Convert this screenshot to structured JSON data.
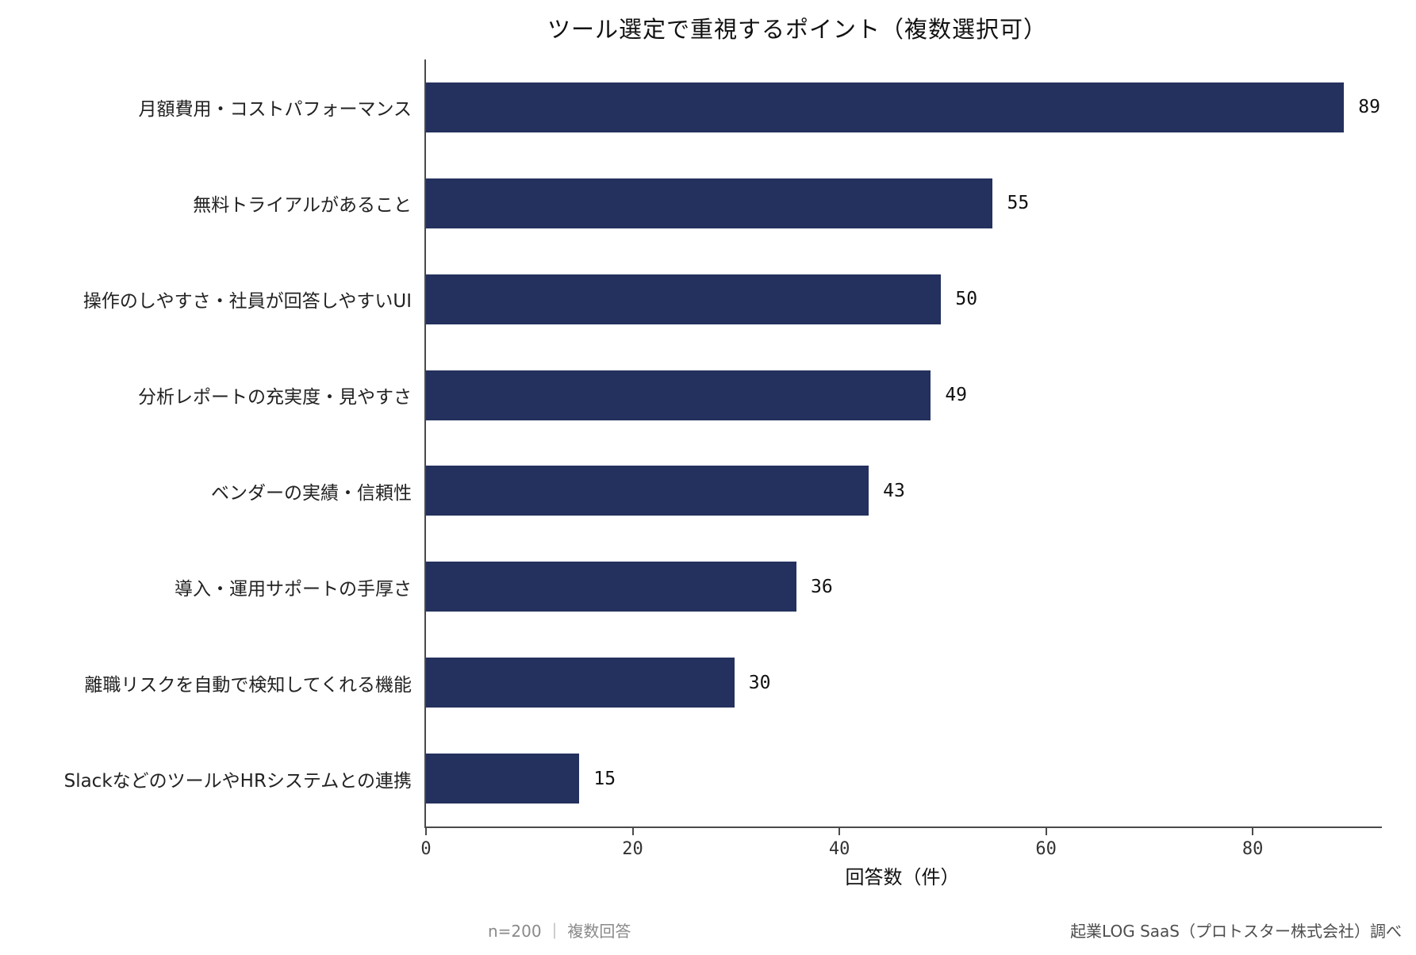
{
  "title": "ツール選定で重視するポイント（複数選択可）",
  "footer": {
    "left": "n=200 ｜ 複数回答",
    "right": "起業LOG SaaS（プロトスター株式会社）調べ"
  },
  "colors": {
    "bar": "#24315E",
    "axis": "#4a4a4a",
    "title_text": "#111111",
    "category_text": "#222222",
    "value_text": "#111111",
    "tick_text": "#333333",
    "footer_left_text": "#8a8a8a",
    "footer_right_text": "#4d4d4d"
  },
  "chart_data": {
    "type": "bar",
    "orientation": "horizontal",
    "title": "ツール選定で重視するポイント（複数選択可）",
    "categories": [
      "月額費用・コストパフォーマンス",
      "無料トライアルがあること",
      "操作のしやすさ・社員が回答しやすいUI",
      "分析レポートの充実度・見やすさ",
      "ベンダーの実績・信頼性",
      "導入・運用サポートの手厚さ",
      "離職リスクを自動で検知してくれる機能",
      "SlackなどのツールやHRシステムとの連携"
    ],
    "values": [
      89,
      55,
      50,
      49,
      43,
      36,
      30,
      15
    ],
    "xlabel": "回答数（件）",
    "ylabel": "",
    "xticks": [
      0,
      20,
      40,
      60,
      80
    ],
    "xlim": [
      0,
      92.5
    ],
    "grid": false,
    "legend": false,
    "bar_color": "#24315E",
    "value_labels_shown": true
  }
}
